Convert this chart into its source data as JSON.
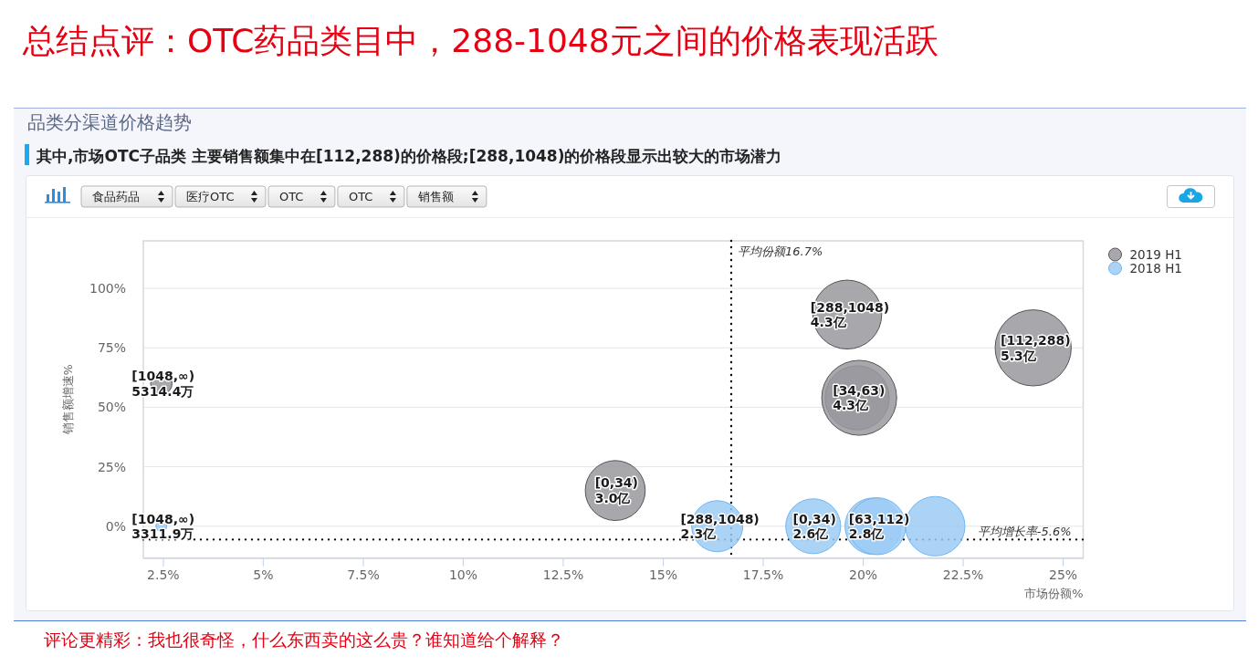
{
  "chart_data": {
    "type": "bubble",
    "title": "总结点评：OTC药品类目中，288-1048元之间的价格表现活跃",
    "subtitle": "其中,市场OTC子品类 主要销售额集中在[112,288)的价格段;[288,1048)的价格段显示出较大的市场潜力",
    "xlabel": "市场份额%",
    "ylabel": "销售额增速%",
    "annotations": [
      "品类分渠道价格趋势",
      "食品药品",
      "医疗OTC",
      "OTC",
      "OTC",
      "销售额",
      "评论更精彩：我也很奇怪，什么东西卖的这么贵？谁知道给个解释？"
    ],
    "series": [
      {
        "name": "2019 H1",
        "color": "#98989d",
        "x": [
          13.8,
          19.85,
          19.9,
          24.25,
          19.6,
          2.45
        ],
        "values": [
          15,
          54,
          54,
          75,
          89,
          60
        ],
        "sizes": [
          0.62,
          0.71,
          0.97,
          1,
          0.82,
          0.08
        ],
        "value_labels": [
          "[0,34)\n3.0亿",
          "[34,63)\n4.3亿",
          null,
          "[112,288)\n5.3亿",
          "[288,1048)\n4.3亿",
          "[1048,∞)\n5314.4万"
        ]
      },
      {
        "name": "2018 H1",
        "color": "#9ccbf5",
        "x": [
          18.75,
          20.25,
          20.35,
          21.8,
          16.35,
          2.45
        ],
        "values": [
          0,
          0,
          0,
          0,
          0,
          0
        ],
        "sizes": [
          0.52,
          0.55,
          0.56,
          0.61,
          0.45,
          0.02
        ],
        "value_labels": [
          "[0,34)\n2.6亿",
          null,
          "[63,112)\n2.8亿",
          null,
          "[288,1048)\n2.3亿",
          "[1048,∞)\n3311.9万"
        ]
      }
    ],
    "xlim": [
      2,
      25.5
    ],
    "xticks": [
      {
        "value": 2.5,
        "label": "2.5%"
      },
      {
        "value": 5,
        "label": "5%"
      },
      {
        "value": 7.5,
        "label": "7.5%"
      },
      {
        "value": 10,
        "label": "10%"
      },
      {
        "value": 12.5,
        "label": "12.5%"
      },
      {
        "value": 15,
        "label": "15%"
      },
      {
        "value": 17.5,
        "label": "17.5%"
      },
      {
        "value": 20,
        "label": "20%"
      },
      {
        "value": 22.5,
        "label": "22.5%"
      },
      {
        "value": 25,
        "label": "25%"
      }
    ],
    "ylim": [
      -13.4,
      120
    ],
    "yticks": [
      {
        "value": 0,
        "label": "0%"
      },
      {
        "value": 25,
        "label": "25%"
      },
      {
        "value": 50,
        "label": "50%"
      },
      {
        "value": 75,
        "label": "75%"
      },
      {
        "value": 100,
        "label": "100%"
      }
    ],
    "grid": "y",
    "legend": "top right",
    "ref_lines": [
      {
        "axis": "x",
        "value": 16.7,
        "label": "平均份额16.7%",
        "color": "#000000",
        "line_style": "dotted"
      },
      {
        "axis": "y",
        "value": -5.6,
        "label": "平均增长率-5.6%",
        "color": "#000000",
        "line_style": "dotted"
      }
    ]
  }
}
